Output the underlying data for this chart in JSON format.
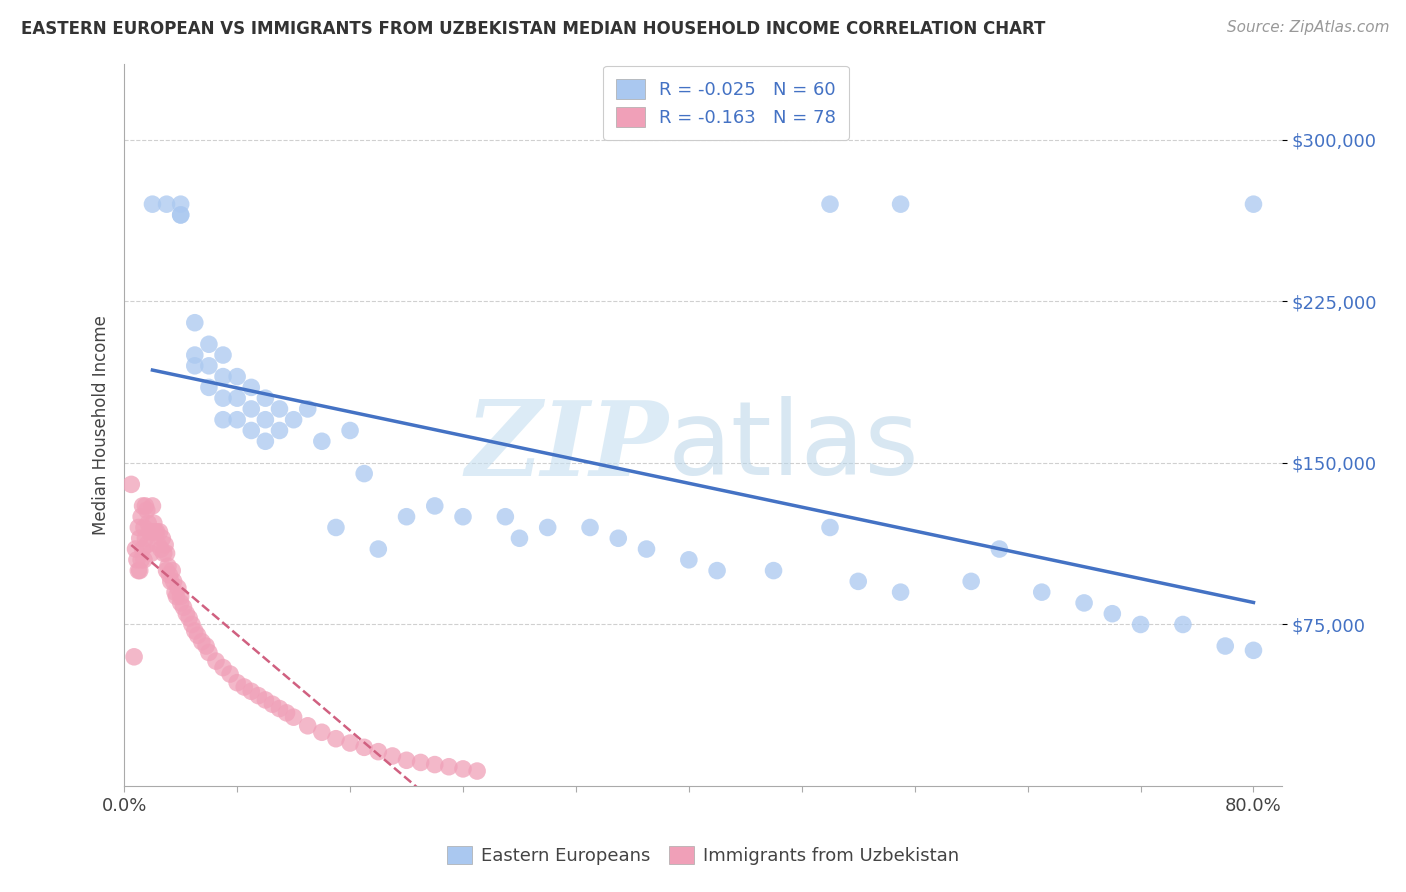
{
  "title": "EASTERN EUROPEAN VS IMMIGRANTS FROM UZBEKISTAN MEDIAN HOUSEHOLD INCOME CORRELATION CHART",
  "source": "Source: ZipAtlas.com",
  "ylabel": "Median Household Income",
  "watermark_zip": "ZIP",
  "watermark_atlas": "atlas",
  "legend_1_label": "R = -0.025   N = 60",
  "legend_2_label": "R = -0.163   N = 78",
  "label_eastern": "Eastern Europeans",
  "label_uzbek": "Immigrants from Uzbekistan",
  "color_eastern": "#aac8f0",
  "color_uzbek": "#f0a0b8",
  "color_eastern_line": "#4472c4",
  "color_uzbek_line": "#d06080",
  "color_legend_text": "#4472c4",
  "yaxis_color": "#4472c4",
  "ytick_labels": [
    "$75,000",
    "$150,000",
    "$225,000",
    "$300,000"
  ],
  "ytick_values": [
    75000,
    150000,
    225000,
    300000
  ],
  "ylim": [
    0,
    335000
  ],
  "xlim": [
    0.0,
    0.82
  ],
  "background_color": "#ffffff",
  "grid_color": "#d0d0d0",
  "eastern_x": [
    0.02,
    0.03,
    0.04,
    0.04,
    0.04,
    0.05,
    0.05,
    0.05,
    0.06,
    0.06,
    0.06,
    0.07,
    0.07,
    0.07,
    0.07,
    0.08,
    0.08,
    0.08,
    0.09,
    0.09,
    0.09,
    0.1,
    0.1,
    0.1,
    0.11,
    0.11,
    0.12,
    0.13,
    0.14,
    0.15,
    0.16,
    0.17,
    0.18,
    0.2,
    0.22,
    0.24,
    0.27,
    0.28,
    0.3,
    0.33,
    0.35,
    0.37,
    0.4,
    0.42,
    0.46,
    0.5,
    0.52,
    0.55,
    0.6,
    0.62,
    0.65,
    0.68,
    0.7,
    0.72,
    0.75,
    0.78,
    0.8,
    0.5,
    0.55,
    0.8
  ],
  "eastern_y": [
    270000,
    270000,
    270000,
    265000,
    265000,
    215000,
    200000,
    195000,
    205000,
    195000,
    185000,
    200000,
    190000,
    180000,
    170000,
    190000,
    180000,
    170000,
    185000,
    175000,
    165000,
    180000,
    170000,
    160000,
    175000,
    165000,
    170000,
    175000,
    160000,
    120000,
    165000,
    145000,
    110000,
    125000,
    130000,
    125000,
    125000,
    115000,
    120000,
    120000,
    115000,
    110000,
    105000,
    100000,
    100000,
    120000,
    95000,
    90000,
    95000,
    110000,
    90000,
    85000,
    80000,
    75000,
    75000,
    65000,
    63000,
    270000,
    270000,
    270000
  ],
  "uzbek_x": [
    0.005,
    0.007,
    0.008,
    0.009,
    0.01,
    0.01,
    0.011,
    0.011,
    0.012,
    0.012,
    0.013,
    0.013,
    0.014,
    0.014,
    0.015,
    0.015,
    0.016,
    0.016,
    0.017,
    0.018,
    0.019,
    0.02,
    0.02,
    0.021,
    0.022,
    0.023,
    0.024,
    0.025,
    0.026,
    0.027,
    0.028,
    0.029,
    0.03,
    0.03,
    0.031,
    0.032,
    0.033,
    0.034,
    0.035,
    0.036,
    0.037,
    0.038,
    0.04,
    0.04,
    0.042,
    0.044,
    0.046,
    0.048,
    0.05,
    0.052,
    0.055,
    0.058,
    0.06,
    0.065,
    0.07,
    0.075,
    0.08,
    0.085,
    0.09,
    0.095,
    0.1,
    0.105,
    0.11,
    0.115,
    0.12,
    0.13,
    0.14,
    0.15,
    0.16,
    0.17,
    0.18,
    0.19,
    0.2,
    0.21,
    0.22,
    0.23,
    0.24,
    0.25
  ],
  "uzbek_y": [
    140000,
    60000,
    110000,
    105000,
    120000,
    100000,
    115000,
    100000,
    125000,
    105000,
    130000,
    110000,
    120000,
    105000,
    130000,
    115000,
    128000,
    112000,
    122000,
    118000,
    108000,
    130000,
    118000,
    122000,
    118000,
    118000,
    112000,
    118000,
    110000,
    115000,
    108000,
    112000,
    108000,
    100000,
    102000,
    98000,
    95000,
    100000,
    95000,
    90000,
    88000,
    92000,
    88000,
    85000,
    83000,
    80000,
    78000,
    75000,
    72000,
    70000,
    67000,
    65000,
    62000,
    58000,
    55000,
    52000,
    48000,
    46000,
    44000,
    42000,
    40000,
    38000,
    36000,
    34000,
    32000,
    28000,
    25000,
    22000,
    20000,
    18000,
    16000,
    14000,
    12000,
    11000,
    10000,
    9000,
    8000,
    7000
  ]
}
